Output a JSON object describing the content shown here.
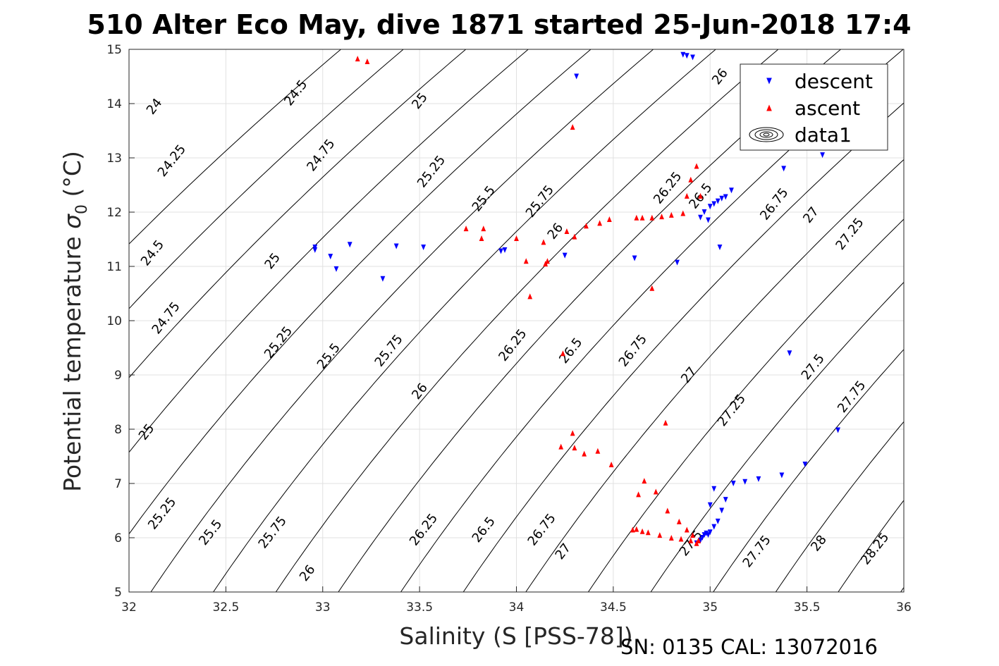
{
  "chart_data": {
    "type": "scatter",
    "title": "510 Alter Eco May, dive 1871 started 25-Jun-2018 17:4",
    "xlabel": "Salinity (S [PSS-78])",
    "ylabel_main": "Potential temperature ",
    "ylabel_sigma": "σ",
    "ylabel_sub": "0",
    "ylabel_unit": " (°C)",
    "footer": "SN: 0135  CAL: 13072016",
    "xlim": [
      32,
      36
    ],
    "ylim": [
      5,
      15
    ],
    "grid": true,
    "legend_position": "top-right",
    "x_ticks": [
      "32",
      "32.5",
      "33",
      "33.5",
      "34",
      "34.5",
      "35",
      "35.5",
      "36"
    ],
    "y_ticks": [
      "5",
      "6",
      "7",
      "8",
      "9",
      "10",
      "11",
      "12",
      "13",
      "14",
      "15"
    ],
    "colors": {
      "descent": "#0000ff",
      "ascent": "#ff0000",
      "contour": "#000000",
      "grid": "#e0e0e0"
    },
    "legend": [
      {
        "label": "descent",
        "marker": "triangle-down",
        "color": "#0000ff"
      },
      {
        "label": "ascent",
        "marker": "triangle-up",
        "color": "#ff0000"
      },
      {
        "label": "data1",
        "marker": "contour-icon",
        "color": "#000000"
      }
    ],
    "contours": {
      "levels": [
        24,
        24.25,
        24.5,
        24.75,
        25,
        25.25,
        25.5,
        25.75,
        26,
        26.25,
        26.5,
        26.75,
        27,
        27.25,
        27.5,
        27.75,
        28,
        28.25
      ],
      "labels": [
        {
          "text": "24",
          "s": 32.13,
          "t": 13.95
        },
        {
          "text": "24.25",
          "s": 32.22,
          "t": 12.95
        },
        {
          "text": "24.5",
          "s": 32.12,
          "t": 11.25
        },
        {
          "text": "24.75",
          "s": 32.19,
          "t": 10.05
        },
        {
          "text": "25",
          "s": 32.09,
          "t": 7.95
        },
        {
          "text": "25.25",
          "s": 32.17,
          "t": 6.45
        },
        {
          "text": "25.5",
          "s": 32.42,
          "t": 6.1
        },
        {
          "text": "25.75",
          "s": 32.74,
          "t": 6.1
        },
        {
          "text": "26",
          "s": 32.92,
          "t": 5.35
        },
        {
          "text": "24.5",
          "s": 32.86,
          "t": 14.2
        },
        {
          "text": "24.75",
          "s": 32.99,
          "t": 13.05
        },
        {
          "text": "25",
          "s": 32.74,
          "t": 11.1
        },
        {
          "text": "25.25",
          "s": 32.77,
          "t": 9.6
        },
        {
          "text": "25.5",
          "s": 33.03,
          "t": 9.35
        },
        {
          "text": "25.75",
          "s": 33.34,
          "t": 9.45
        },
        {
          "text": "26",
          "s": 33.5,
          "t": 8.7
        },
        {
          "text": "26.25",
          "s": 33.52,
          "t": 6.15
        },
        {
          "text": "26.5",
          "s": 33.83,
          "t": 6.15
        },
        {
          "text": "26.75",
          "s": 34.13,
          "t": 6.15
        },
        {
          "text": "27",
          "s": 34.24,
          "t": 5.75
        },
        {
          "text": "25",
          "s": 33.5,
          "t": 14.05
        },
        {
          "text": "25.25",
          "s": 33.56,
          "t": 12.75
        },
        {
          "text": "25.5",
          "s": 33.83,
          "t": 12.25
        },
        {
          "text": "25.75",
          "s": 34.12,
          "t": 12.2
        },
        {
          "text": "26",
          "s": 34.2,
          "t": 11.65
        },
        {
          "text": "26",
          "s": 35.05,
          "t": 14.5
        },
        {
          "text": "26.25",
          "s": 34.78,
          "t": 12.45
        },
        {
          "text": "26.5",
          "s": 34.95,
          "t": 12.3
        },
        {
          "text": "26.75",
          "s": 35.33,
          "t": 12.15
        },
        {
          "text": "27",
          "s": 35.52,
          "t": 11.95
        },
        {
          "text": "27.25",
          "s": 35.72,
          "t": 11.6
        },
        {
          "text": "26.25",
          "s": 33.98,
          "t": 9.55
        },
        {
          "text": "26.5",
          "s": 34.28,
          "t": 9.45
        },
        {
          "text": "26.75",
          "s": 34.6,
          "t": 9.45
        },
        {
          "text": "27",
          "s": 34.89,
          "t": 9.0
        },
        {
          "text": "27.25",
          "s": 35.11,
          "t": 8.35
        },
        {
          "text": "27.5",
          "s": 35.53,
          "t": 9.15
        },
        {
          "text": "27.75",
          "s": 35.73,
          "t": 8.6
        },
        {
          "text": "27.5",
          "s": 34.9,
          "t": 5.9
        },
        {
          "text": "27.75",
          "s": 35.24,
          "t": 5.75
        },
        {
          "text": "28",
          "s": 35.56,
          "t": 5.9
        },
        {
          "text": "28.25",
          "s": 35.85,
          "t": 5.8
        }
      ]
    },
    "series": [
      {
        "name": "descent",
        "marker": "triangle-down",
        "color": "#0000ff",
        "x": [
          32.96,
          32.96,
          33.04,
          33.07,
          33.14,
          33.31,
          33.38,
          33.52,
          33.92,
          33.94,
          34.25,
          34.31,
          34.61,
          34.83,
          34.86,
          34.88,
          34.91,
          34.93,
          34.95,
          34.96,
          34.97,
          34.98,
          34.99,
          35.0,
          35.02,
          35.04,
          35.06,
          35.08,
          35.12,
          35.38,
          35.58,
          34.95,
          34.97,
          34.99,
          35.0,
          35.02,
          35.04,
          35.06,
          35.08,
          35.11,
          35.18,
          35.25,
          35.37,
          35.49,
          35.41,
          35.66,
          35.05,
          35.02,
          35.0
        ],
        "y": [
          11.35,
          11.3,
          11.18,
          10.95,
          11.4,
          10.77,
          11.37,
          11.35,
          11.28,
          11.3,
          11.2,
          14.5,
          11.15,
          11.07,
          14.9,
          14.88,
          14.85,
          5.9,
          5.95,
          6.0,
          6.05,
          6.08,
          6.05,
          6.1,
          6.2,
          6.3,
          6.5,
          6.7,
          7.0,
          12.8,
          13.05,
          11.9,
          12.0,
          11.85,
          12.1,
          12.15,
          12.2,
          12.25,
          12.28,
          12.4,
          7.03,
          7.08,
          7.15,
          7.35,
          9.4,
          7.98,
          11.35,
          6.9,
          6.6
        ]
      },
      {
        "name": "ascent",
        "marker": "triangle-up",
        "color": "#ff0000",
        "x": [
          33.18,
          33.23,
          33.74,
          33.82,
          33.83,
          34.0,
          34.05,
          34.07,
          34.14,
          34.15,
          34.16,
          34.24,
          34.29,
          34.3,
          34.26,
          34.36,
          34.43,
          34.48,
          34.29,
          34.23,
          34.3,
          34.35,
          34.42,
          34.49,
          34.62,
          34.65,
          34.7,
          34.75,
          34.8,
          34.86,
          34.88,
          34.9,
          34.93,
          34.95,
          34.77,
          34.7,
          34.63,
          34.66,
          34.72,
          34.78,
          34.84,
          34.88,
          34.91,
          34.94,
          34.6,
          34.62,
          34.65,
          34.68,
          34.74,
          34.8,
          34.85,
          34.9,
          34.93
        ],
        "y": [
          14.83,
          14.78,
          11.7,
          11.52,
          11.7,
          11.52,
          11.1,
          10.45,
          11.45,
          11.05,
          11.1,
          9.4,
          13.57,
          11.55,
          11.65,
          11.75,
          11.8,
          11.87,
          7.93,
          7.68,
          7.66,
          7.55,
          7.6,
          7.35,
          11.9,
          11.9,
          11.9,
          11.92,
          11.95,
          11.98,
          12.3,
          12.6,
          12.85,
          12.3,
          8.12,
          10.6,
          6.8,
          7.05,
          6.85,
          6.5,
          6.3,
          6.15,
          6.05,
          5.95,
          6.15,
          6.16,
          6.12,
          6.1,
          6.05,
          6.0,
          5.98,
          5.95,
          5.9
        ]
      }
    ]
  }
}
